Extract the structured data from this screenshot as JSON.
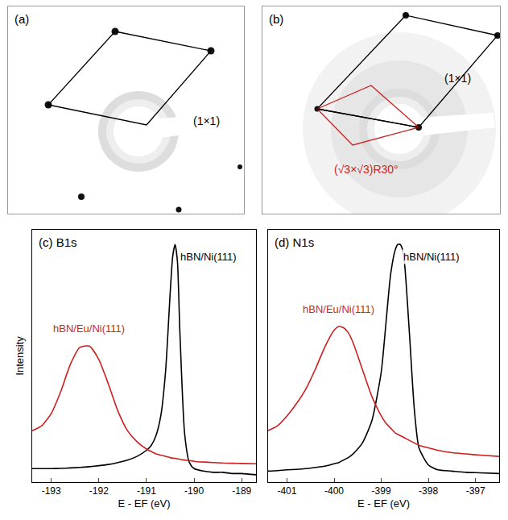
{
  "chart_data": [
    {
      "type": "image",
      "title": "(a)",
      "annotations": [
        {
          "text": "(1×1)",
          "color": "#000000"
        }
      ]
    },
    {
      "type": "image",
      "title": "(b)",
      "annotations": [
        {
          "text": "(1×1)",
          "color": "#000000"
        },
        {
          "text": "(√3×√3)R30°",
          "color": "#cc1f1f"
        }
      ]
    },
    {
      "type": "line",
      "title": "(c) B1s",
      "xlabel": "E - EF (eV)",
      "ylabel": "Intensity",
      "xlim": [
        -193.4,
        -188.7
      ],
      "xticks": [
        -193,
        -192,
        -191,
        -190,
        -189
      ],
      "ylim": [
        0,
        1.03
      ],
      "tick_labels": "x",
      "x": [
        -193.4,
        -193.2,
        -193.0,
        -192.8,
        -192.6,
        -192.4,
        -192.2,
        -192.0,
        -191.8,
        -191.6,
        -191.4,
        -191.2,
        -191.0,
        -190.9,
        -190.8,
        -190.7,
        -190.6,
        -190.5,
        -190.45,
        -190.4,
        -190.35,
        -190.3,
        -190.2,
        -190.1,
        -190.0,
        -189.8,
        -189.6,
        -189.4,
        -189.2,
        -189.0,
        -188.7
      ],
      "series": [
        {
          "name": "hBN/Ni(111)",
          "color": "#000000",
          "values": [
            0.055,
            0.055,
            0.055,
            0.056,
            0.058,
            0.06,
            0.063,
            0.067,
            0.072,
            0.08,
            0.09,
            0.105,
            0.13,
            0.15,
            0.19,
            0.27,
            0.45,
            0.78,
            0.92,
            0.97,
            0.9,
            0.62,
            0.2,
            0.08,
            0.055,
            0.045,
            0.04,
            0.04,
            0.035,
            0.035,
            0.03
          ]
        },
        {
          "name": "hBN/Eu/Ni(111)",
          "color": "#cc1f1f",
          "values": [
            0.21,
            0.23,
            0.28,
            0.37,
            0.48,
            0.55,
            0.555,
            0.5,
            0.4,
            0.29,
            0.21,
            0.165,
            0.135,
            0.125,
            0.115,
            0.11,
            0.105,
            0.1,
            0.098,
            0.097,
            0.095,
            0.093,
            0.09,
            0.088,
            0.085,
            0.082,
            0.08,
            0.078,
            0.077,
            0.076,
            0.075
          ]
        }
      ]
    },
    {
      "type": "line",
      "title": "(d) N1s",
      "xlabel": "E - EF (eV)",
      "xlim": [
        -401.4,
        -396.5
      ],
      "xticks": [
        -401,
        -400,
        -399,
        -398,
        -397
      ],
      "ylim": [
        0,
        1.03
      ],
      "tick_labels": "x",
      "x": [
        -401.4,
        -401.2,
        -401.0,
        -400.8,
        -400.6,
        -400.4,
        -400.2,
        -400.0,
        -399.9,
        -399.8,
        -399.7,
        -399.6,
        -399.4,
        -399.2,
        -399.0,
        -398.9,
        -398.8,
        -398.7,
        -398.65,
        -398.6,
        -398.55,
        -398.5,
        -398.4,
        -398.3,
        -398.2,
        -398.0,
        -397.8,
        -397.5,
        -397.2,
        -396.9,
        -396.5
      ],
      "series": [
        {
          "name": "hBN/Ni(111)",
          "color": "#000000",
          "values": [
            0.045,
            0.047,
            0.05,
            0.052,
            0.055,
            0.06,
            0.065,
            0.075,
            0.08,
            0.09,
            0.1,
            0.115,
            0.16,
            0.25,
            0.45,
            0.65,
            0.85,
            0.95,
            0.97,
            0.97,
            0.95,
            0.88,
            0.6,
            0.3,
            0.14,
            0.07,
            0.05,
            0.045,
            0.04,
            0.038,
            0.035
          ]
        },
        {
          "name": "hBN/Eu/Ni(111)",
          "color": "#cc1f1f",
          "values": [
            0.21,
            0.23,
            0.27,
            0.32,
            0.38,
            0.46,
            0.55,
            0.62,
            0.635,
            0.63,
            0.61,
            0.57,
            0.46,
            0.35,
            0.27,
            0.24,
            0.22,
            0.2,
            0.195,
            0.19,
            0.185,
            0.18,
            0.17,
            0.16,
            0.15,
            0.14,
            0.13,
            0.12,
            0.115,
            0.11,
            0.105
          ]
        }
      ]
    }
  ]
}
